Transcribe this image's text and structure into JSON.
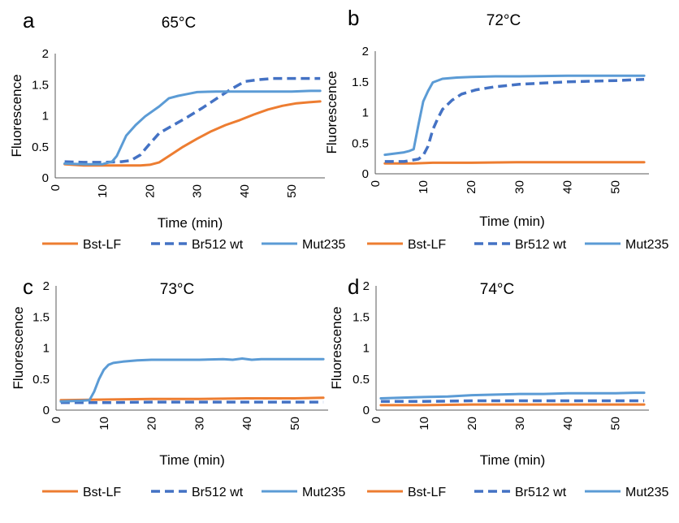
{
  "chart_data": [
    {
      "type": "line",
      "panel_label": "a",
      "title": "65°C",
      "xlabel": "Time (min)",
      "ylabel": "Fluorescence",
      "xlim": [
        0,
        57
      ],
      "ylim": [
        0,
        2
      ],
      "x_ticks": [
        "0",
        "10",
        "20",
        "30",
        "40",
        "50"
      ],
      "y_ticks": [
        "0",
        "0.5",
        "1",
        "1.5",
        "2"
      ],
      "grid": false,
      "legend": "bottom",
      "series": [
        {
          "name": "Bst-LF",
          "color": "#ED7D31",
          "dash": false,
          "x": [
            2,
            6,
            10,
            14,
            18,
            20,
            22,
            24,
            27,
            30,
            33,
            36,
            39,
            42,
            45,
            48,
            51,
            54,
            56
          ],
          "y": [
            0.22,
            0.2,
            0.2,
            0.2,
            0.2,
            0.21,
            0.25,
            0.35,
            0.5,
            0.63,
            0.75,
            0.85,
            0.93,
            1.02,
            1.1,
            1.16,
            1.2,
            1.22,
            1.23
          ]
        },
        {
          "name": "Br512 wt",
          "color": "#4472C4",
          "dash": true,
          "x": [
            2,
            6,
            10,
            14,
            16,
            18,
            20,
            22,
            25,
            28,
            31,
            34,
            37,
            40,
            43,
            46,
            50,
            54,
            56
          ],
          "y": [
            0.26,
            0.25,
            0.25,
            0.26,
            0.28,
            0.37,
            0.55,
            0.72,
            0.85,
            0.98,
            1.12,
            1.27,
            1.42,
            1.55,
            1.58,
            1.6,
            1.6,
            1.6,
            1.6
          ]
        },
        {
          "name": "Mut235",
          "color": "#5B9BD5",
          "dash": false,
          "x": [
            2,
            6,
            10,
            12,
            13,
            15,
            17,
            19,
            22,
            24,
            26,
            28,
            30,
            34,
            40,
            46,
            50,
            54,
            56
          ],
          "y": [
            0.23,
            0.22,
            0.22,
            0.26,
            0.35,
            0.68,
            0.85,
            0.99,
            1.15,
            1.28,
            1.32,
            1.35,
            1.38,
            1.39,
            1.39,
            1.39,
            1.39,
            1.4,
            1.4
          ]
        }
      ]
    },
    {
      "type": "line",
      "panel_label": "b",
      "title": "72°C",
      "xlabel": "Time (min)",
      "ylabel": "Fluorescence",
      "xlim": [
        0,
        57
      ],
      "ylim": [
        0,
        2
      ],
      "x_ticks": [
        "0",
        "10",
        "20",
        "30",
        "40",
        "50"
      ],
      "y_ticks": [
        "0",
        "0.5",
        "1",
        "1.5",
        "2"
      ],
      "grid": false,
      "legend": "bottom",
      "series": [
        {
          "name": "Bst-LF",
          "color": "#ED7D31",
          "dash": false,
          "x": [
            2,
            8,
            12,
            20,
            30,
            40,
            50,
            56
          ],
          "y": [
            0.17,
            0.17,
            0.18,
            0.18,
            0.19,
            0.19,
            0.19,
            0.19
          ]
        },
        {
          "name": "Br512 wt",
          "color": "#4472C4",
          "dash": true,
          "x": [
            2,
            6,
            9,
            10,
            11,
            12,
            13,
            14,
            16,
            18,
            21,
            25,
            30,
            35,
            40,
            45,
            50,
            56
          ],
          "y": [
            0.2,
            0.2,
            0.24,
            0.3,
            0.45,
            0.72,
            0.9,
            1.05,
            1.2,
            1.3,
            1.37,
            1.42,
            1.46,
            1.48,
            1.5,
            1.51,
            1.52,
            1.54
          ]
        },
        {
          "name": "Mut235",
          "color": "#5B9BD5",
          "dash": false,
          "x": [
            2,
            4,
            6,
            7,
            8,
            9,
            10,
            11,
            12,
            14,
            17,
            20,
            25,
            30,
            40,
            50,
            56
          ],
          "y": [
            0.31,
            0.33,
            0.35,
            0.37,
            0.4,
            0.8,
            1.18,
            1.35,
            1.49,
            1.55,
            1.57,
            1.58,
            1.59,
            1.59,
            1.6,
            1.6,
            1.6
          ]
        }
      ]
    },
    {
      "type": "line",
      "panel_label": "c",
      "title": "73°C",
      "xlabel": "Time (min)",
      "ylabel": "Fluorescence",
      "xlim": [
        0,
        57
      ],
      "ylim": [
        0,
        2
      ],
      "x_ticks": [
        "0",
        "10",
        "20",
        "30",
        "40",
        "50"
      ],
      "y_ticks": [
        "0",
        "0.5",
        "1",
        "1.5",
        "2"
      ],
      "grid": false,
      "legend": "bottom",
      "series": [
        {
          "name": "Bst-LF",
          "color": "#ED7D31",
          "dash": false,
          "x": [
            1,
            10,
            20,
            30,
            40,
            50,
            56
          ],
          "y": [
            0.16,
            0.17,
            0.18,
            0.18,
            0.19,
            0.19,
            0.2
          ]
        },
        {
          "name": "Br512 wt",
          "color": "#4472C4",
          "dash": true,
          "x": [
            1,
            10,
            20,
            30,
            40,
            50,
            56
          ],
          "y": [
            0.12,
            0.12,
            0.13,
            0.13,
            0.13,
            0.13,
            0.13
          ]
        },
        {
          "name": "Mut235",
          "color": "#5B9BD5",
          "dash": false,
          "x": [
            1,
            5,
            7,
            8,
            9,
            10,
            11,
            12,
            14,
            17,
            20,
            25,
            30,
            35,
            37,
            39,
            41,
            43,
            45,
            50,
            56
          ],
          "y": [
            0.14,
            0.15,
            0.16,
            0.3,
            0.5,
            0.65,
            0.73,
            0.76,
            0.78,
            0.8,
            0.81,
            0.81,
            0.81,
            0.82,
            0.81,
            0.83,
            0.81,
            0.82,
            0.82,
            0.82,
            0.82
          ]
        }
      ]
    },
    {
      "type": "line",
      "panel_label": "d",
      "title": "74°C",
      "xlabel": "Time (min)",
      "ylabel": "Fluorescence",
      "xlim": [
        0,
        57
      ],
      "ylim": [
        0,
        2
      ],
      "x_ticks": [
        "0",
        "10",
        "20",
        "30",
        "40",
        "50"
      ],
      "y_ticks": [
        "0",
        "0.5",
        "1",
        "1.5",
        "2"
      ],
      "grid": false,
      "legend": "bottom",
      "series": [
        {
          "name": "Bst-LF",
          "color": "#ED7D31",
          "dash": false,
          "x": [
            1,
            10,
            20,
            30,
            40,
            50,
            56
          ],
          "y": [
            0.08,
            0.08,
            0.09,
            0.09,
            0.09,
            0.09,
            0.09
          ]
        },
        {
          "name": "Br512 wt",
          "color": "#4472C4",
          "dash": true,
          "x": [
            1,
            10,
            20,
            30,
            40,
            50,
            56
          ],
          "y": [
            0.14,
            0.14,
            0.15,
            0.15,
            0.15,
            0.15,
            0.15
          ]
        },
        {
          "name": "Mut235",
          "color": "#5B9BD5",
          "dash": false,
          "x": [
            1,
            5,
            10,
            15,
            20,
            25,
            30,
            35,
            40,
            45,
            50,
            54,
            56
          ],
          "y": [
            0.19,
            0.2,
            0.21,
            0.22,
            0.24,
            0.25,
            0.26,
            0.26,
            0.27,
            0.27,
            0.27,
            0.28,
            0.28
          ]
        }
      ]
    }
  ]
}
